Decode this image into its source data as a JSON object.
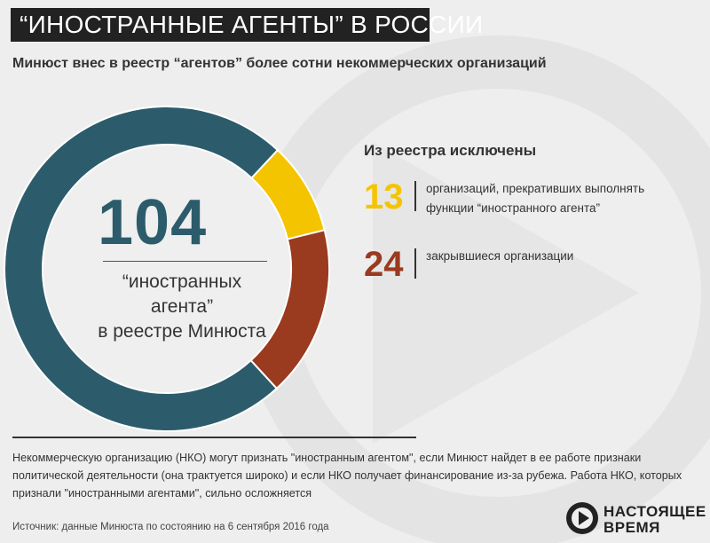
{
  "header": {
    "title": "“ИНОСТРАННЫЕ АГЕНТЫ” В РОССИИ",
    "subtitle": "Минюст внес в реестр “агентов” более сотни некоммерческих организаций"
  },
  "center": {
    "value": "104",
    "label_line1": "“иностранных агента”",
    "label_line2": "в реестре Минюста"
  },
  "excluded": {
    "heading": "Из реестра исключены",
    "items": [
      {
        "value": "13",
        "text_line1": "организаций, прекративших выполнять",
        "text_line2": "функции “иностранного агента”",
        "color": "#f5c400"
      },
      {
        "value": "24",
        "text_line1": "закрывшиеся организации",
        "text_line2": "",
        "color": "#9a3a1e"
      }
    ]
  },
  "chart_data": {
    "type": "pie",
    "donut": true,
    "categories": [
      "в реестре Минюста",
      "организаций, прекративших выполнять функции “иностранного агента”",
      "закрывшиеся организации"
    ],
    "values": [
      104,
      13,
      24
    ],
    "colors": [
      "#2c5c6b",
      "#f5c400",
      "#9a3a1e"
    ]
  },
  "note": "Некоммерческую организацию (НКО) могут признать \"иностранным агентом\", если Минюст найдет в ее работе признаки политической деятельности (она трактуется широко) и если НКО получает финансирование из-за рубежа. Работа НКО, которых признали \"иностранными агентами\", сильно осложняется",
  "source": "Источник:  данные Минюста по состоянию на 6 сентября 2016 года",
  "brand": {
    "line1": "НАСТОЯЩЕЕ",
    "line2": "ВРЕМЯ"
  }
}
